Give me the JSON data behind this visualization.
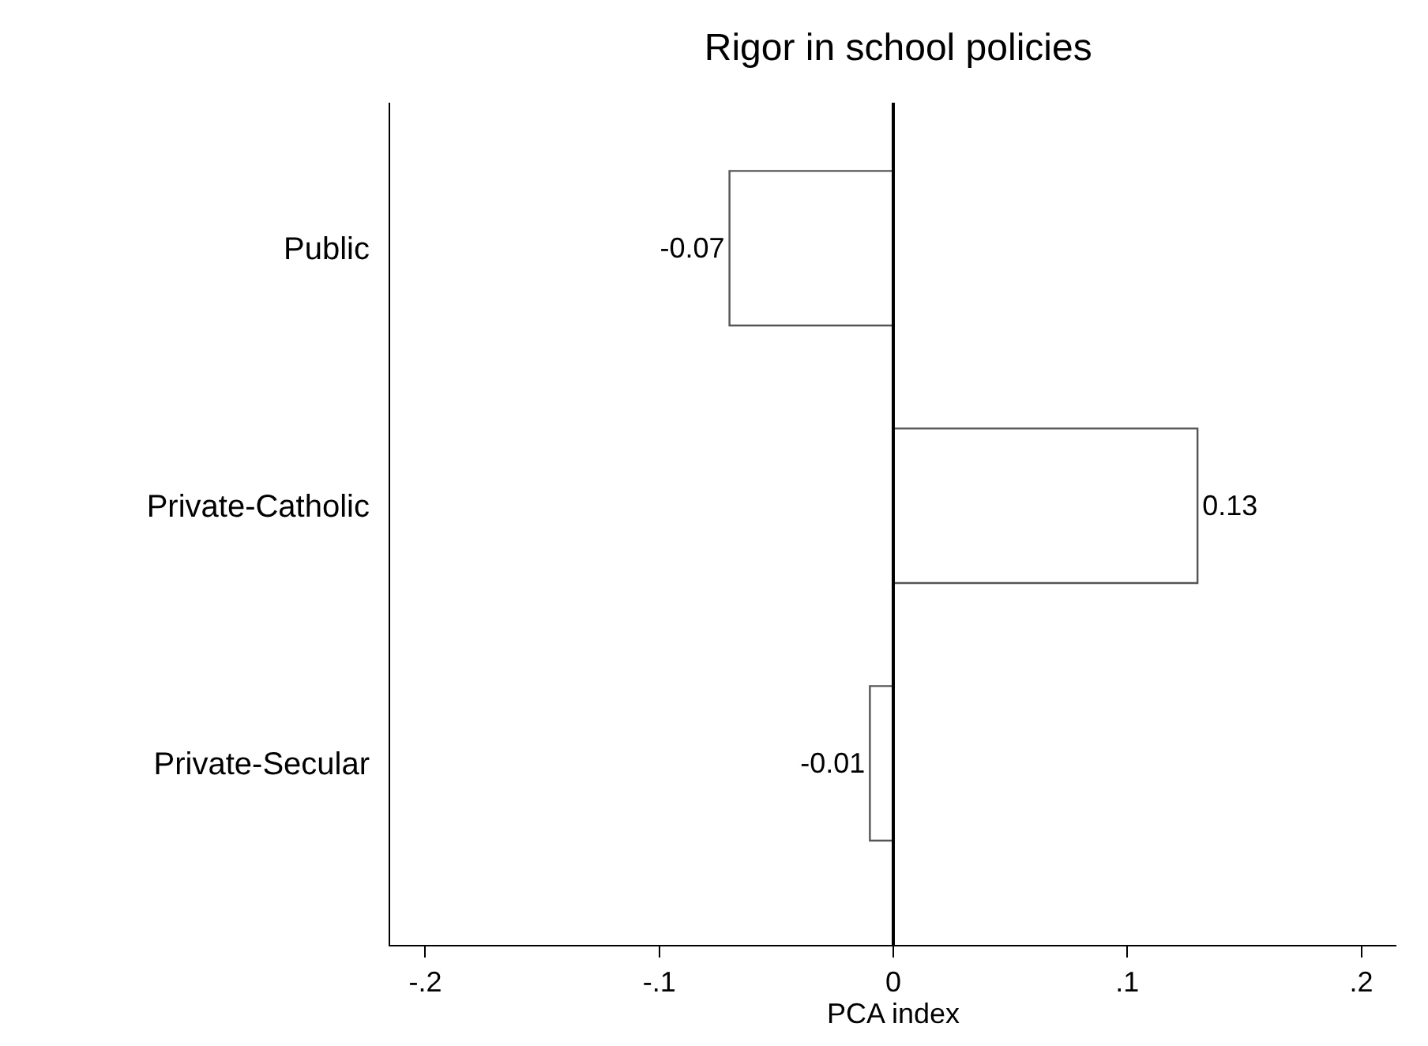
{
  "chart_data": {
    "type": "bar",
    "orientation": "horizontal",
    "title": "Rigor in school policies",
    "xlabel": "PCA index",
    "categories": [
      "Public",
      "Private-Catholic",
      "Private-Secular"
    ],
    "values": [
      -0.07,
      0.13,
      -0.01
    ],
    "color": "#ffffff",
    "data_labels": true,
    "xlim": [
      -0.215,
      0.215
    ],
    "xticks": [
      {
        "value": -0.2,
        "label": "-.2"
      },
      {
        "value": -0.1,
        "label": "-.1"
      },
      0,
      {
        "value": 0.1,
        "label": ".1"
      },
      {
        "value": 0.2,
        "label": ".2"
      }
    ],
    "ref_lines": [
      {
        "axis": "x",
        "value": 0,
        "color": "#000000"
      }
    ]
  }
}
